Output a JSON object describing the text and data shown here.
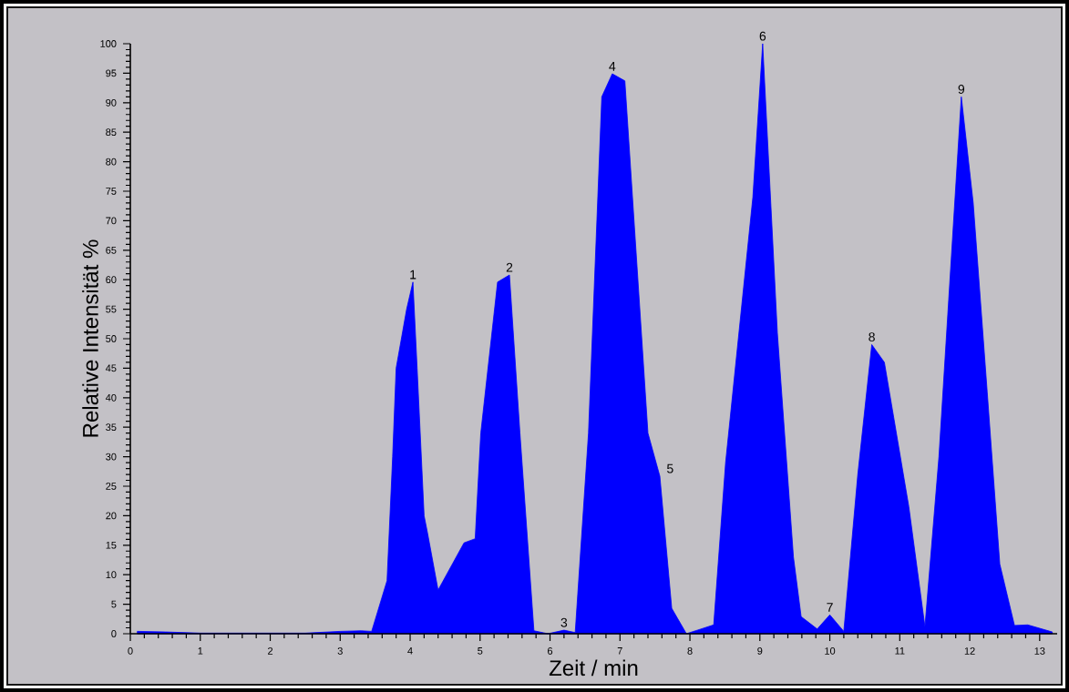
{
  "chart_data": {
    "type": "area",
    "xlabel": "Zeit / min",
    "ylabel": "Relative Intensität %",
    "color": "#0000ff",
    "x": [
      0.1,
      0.5,
      1.0,
      2.5,
      3.0,
      3.3,
      3.45,
      3.67,
      3.75,
      3.8,
      3.95,
      4.04,
      4.1,
      4.2,
      4.25,
      4.4,
      4.77,
      4.93,
      5.01,
      5.25,
      5.42,
      5.57,
      5.77,
      5.97,
      6.2,
      6.36,
      6.55,
      6.74,
      6.89,
      7.07,
      7.4,
      7.57,
      7.74,
      7.95,
      8.34,
      8.51,
      8.9,
      9.04,
      9.25,
      9.48,
      9.59,
      9.82,
      10.0,
      10.2,
      10.4,
      10.6,
      10.78,
      11.13,
      11.36,
      11.56,
      11.88,
      12.05,
      12.25,
      12.43,
      12.64,
      12.83,
      13.18
    ],
    "values": [
      0.4,
      0.3,
      0.1,
      0.1,
      0.4,
      0.5,
      0.4,
      9,
      30,
      45,
      55,
      59.6,
      45,
      20,
      17,
      7.4,
      15.4,
      16.1,
      34,
      59.6,
      60.8,
      34,
      0.5,
      0,
      0.6,
      0.2,
      34,
      91,
      94.9,
      93.7,
      34,
      26.7,
      4.3,
      0,
      1.5,
      29,
      74,
      100,
      51,
      13,
      2.9,
      0.8,
      3.2,
      0.4,
      27,
      49,
      46,
      21.5,
      1.2,
      30,
      91,
      73,
      41,
      11.8,
      1.4,
      1.5,
      0.3
    ],
    "xlim": [
      0,
      13.25
    ],
    "ylim": [
      0,
      100
    ],
    "xticks": [
      0,
      1,
      2,
      3,
      4,
      5,
      6,
      7,
      8,
      9,
      10,
      11,
      12,
      13
    ],
    "yticks": [
      0,
      5,
      10,
      15,
      20,
      25,
      30,
      35,
      40,
      45,
      50,
      55,
      60,
      65,
      70,
      75,
      80,
      85,
      90,
      95,
      100
    ],
    "annotations": [
      {
        "text": "1",
        "x": 4.04,
        "y": 59.6
      },
      {
        "text": "2",
        "x": 5.42,
        "y": 60.8
      },
      {
        "text": "3",
        "x": 6.2,
        "y": 0.6
      },
      {
        "text": "4",
        "x": 6.89,
        "y": 94.9
      },
      {
        "text": "5",
        "x": 7.57,
        "y": 26.7
      },
      {
        "text": "6",
        "x": 9.04,
        "y": 100
      },
      {
        "text": "7",
        "x": 10.0,
        "y": 3.2
      },
      {
        "text": "8",
        "x": 10.6,
        "y": 49
      },
      {
        "text": "9",
        "x": 11.88,
        "y": 91
      }
    ]
  }
}
